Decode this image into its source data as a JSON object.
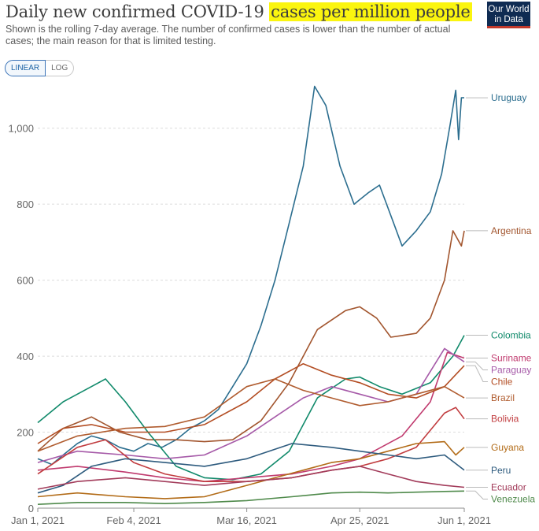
{
  "header": {
    "title_plain": "Daily new confirmed COVID-19 ",
    "title_highlight": "cases per million people",
    "subtitle": "Shown is the rolling 7-day average. The number of confirmed cases is lower than the number of actual cases; the main reason for that is limited testing.",
    "logo_line1": "Our World",
    "logo_line2": "in Data"
  },
  "scale_toggle": {
    "linear": "LINEAR",
    "log": "LOG",
    "selected": "LINEAR"
  },
  "chart_data": {
    "type": "line",
    "x_tick_labels": [
      "Jan 1, 2021",
      "Feb 4, 2021",
      "Mar 16, 2021",
      "Apr 25, 2021",
      "Jun 1, 2021"
    ],
    "x_tick_dates": [
      "2021-01-01",
      "2021-02-04",
      "2021-03-16",
      "2021-04-25",
      "2021-06-01"
    ],
    "y_ticks": [
      0,
      200,
      400,
      600,
      800,
      1000
    ],
    "y_tick_labels": [
      "0",
      "200",
      "400",
      "600",
      "800",
      "1,000"
    ],
    "ylim": [
      0,
      1130
    ],
    "xlim": [
      "2021-01-01",
      "2021-06-01"
    ],
    "grid": "horizontal dashed",
    "series": [
      {
        "name": "Uruguay",
        "color": "#2c6e8f",
        "label_value": 1080,
        "points": [
          [
            "2021-01-01",
            130
          ],
          [
            "2021-01-06",
            115
          ],
          [
            "2021-01-10",
            140
          ],
          [
            "2021-01-15",
            170
          ],
          [
            "2021-01-20",
            190
          ],
          [
            "2021-01-25",
            180
          ],
          [
            "2021-01-30",
            160
          ],
          [
            "2021-02-04",
            150
          ],
          [
            "2021-02-09",
            170
          ],
          [
            "2021-02-14",
            160
          ],
          [
            "2021-02-19",
            180
          ],
          [
            "2021-02-24",
            210
          ],
          [
            "2021-03-01",
            230
          ],
          [
            "2021-03-06",
            260
          ],
          [
            "2021-03-11",
            320
          ],
          [
            "2021-03-16",
            380
          ],
          [
            "2021-03-21",
            480
          ],
          [
            "2021-03-26",
            600
          ],
          [
            "2021-03-31",
            750
          ],
          [
            "2021-04-05",
            900
          ],
          [
            "2021-04-09",
            1110
          ],
          [
            "2021-04-13",
            1060
          ],
          [
            "2021-04-18",
            900
          ],
          [
            "2021-04-23",
            800
          ],
          [
            "2021-04-28",
            830
          ],
          [
            "2021-05-02",
            850
          ],
          [
            "2021-05-07",
            750
          ],
          [
            "2021-05-10",
            690
          ],
          [
            "2021-05-15",
            730
          ],
          [
            "2021-05-20",
            780
          ],
          [
            "2021-05-24",
            880
          ],
          [
            "2021-05-27",
            1010
          ],
          [
            "2021-05-29",
            1100
          ],
          [
            "2021-05-30",
            970
          ],
          [
            "2021-05-31",
            1080
          ],
          [
            "2021-06-01",
            1080
          ]
        ]
      },
      {
        "name": "Argentina",
        "color": "#a2552e",
        "label_value": 730,
        "points": [
          [
            "2021-01-01",
            150
          ],
          [
            "2021-01-10",
            210
          ],
          [
            "2021-01-20",
            240
          ],
          [
            "2021-01-30",
            200
          ],
          [
            "2021-02-09",
            180
          ],
          [
            "2021-02-19",
            180
          ],
          [
            "2021-03-01",
            175
          ],
          [
            "2021-03-11",
            180
          ],
          [
            "2021-03-21",
            230
          ],
          [
            "2021-03-31",
            330
          ],
          [
            "2021-04-10",
            470
          ],
          [
            "2021-04-20",
            520
          ],
          [
            "2021-04-25",
            530
          ],
          [
            "2021-05-01",
            500
          ],
          [
            "2021-05-06",
            450
          ],
          [
            "2021-05-15",
            460
          ],
          [
            "2021-05-20",
            500
          ],
          [
            "2021-05-25",
            600
          ],
          [
            "2021-05-28",
            730
          ],
          [
            "2021-05-31",
            690
          ],
          [
            "2021-06-01",
            730
          ]
        ]
      },
      {
        "name": "Colombia",
        "color": "#118a6b",
        "label_value": 455,
        "points": [
          [
            "2021-01-01",
            225
          ],
          [
            "2021-01-10",
            280
          ],
          [
            "2021-01-20",
            320
          ],
          [
            "2021-01-25",
            340
          ],
          [
            "2021-02-01",
            280
          ],
          [
            "2021-02-09",
            200
          ],
          [
            "2021-02-19",
            110
          ],
          [
            "2021-03-01",
            80
          ],
          [
            "2021-03-11",
            75
          ],
          [
            "2021-03-21",
            90
          ],
          [
            "2021-03-31",
            150
          ],
          [
            "2021-04-05",
            220
          ],
          [
            "2021-04-10",
            290
          ],
          [
            "2021-04-20",
            340
          ],
          [
            "2021-04-25",
            345
          ],
          [
            "2021-05-02",
            320
          ],
          [
            "2021-05-10",
            300
          ],
          [
            "2021-05-20",
            330
          ],
          [
            "2021-05-28",
            400
          ],
          [
            "2021-06-01",
            455
          ]
        ]
      },
      {
        "name": "Suriname",
        "color": "#c03a6e",
        "label_value": 395,
        "points": [
          [
            "2021-01-01",
            100
          ],
          [
            "2021-01-15",
            110
          ],
          [
            "2021-02-01",
            95
          ],
          [
            "2021-02-15",
            80
          ],
          [
            "2021-03-01",
            70
          ],
          [
            "2021-03-16",
            80
          ],
          [
            "2021-04-01",
            90
          ],
          [
            "2021-04-15",
            110
          ],
          [
            "2021-04-25",
            130
          ],
          [
            "2021-05-10",
            190
          ],
          [
            "2021-05-20",
            280
          ],
          [
            "2021-05-26",
            410
          ],
          [
            "2021-06-01",
            395
          ]
        ]
      },
      {
        "name": "Paraguay",
        "color": "#a65aa8",
        "label_value": 385,
        "points": [
          [
            "2021-01-01",
            120
          ],
          [
            "2021-01-15",
            150
          ],
          [
            "2021-02-01",
            140
          ],
          [
            "2021-02-15",
            130
          ],
          [
            "2021-03-01",
            140
          ],
          [
            "2021-03-16",
            190
          ],
          [
            "2021-03-26",
            240
          ],
          [
            "2021-04-05",
            290
          ],
          [
            "2021-04-15",
            320
          ],
          [
            "2021-04-25",
            300
          ],
          [
            "2021-05-05",
            280
          ],
          [
            "2021-05-15",
            300
          ],
          [
            "2021-05-25",
            420
          ],
          [
            "2021-06-01",
            385
          ]
        ]
      },
      {
        "name": "Chile",
        "color": "#b34d23",
        "label_value": 375,
        "points": [
          [
            "2021-01-01",
            170
          ],
          [
            "2021-01-10",
            210
          ],
          [
            "2021-01-20",
            220
          ],
          [
            "2021-02-01",
            200
          ],
          [
            "2021-02-15",
            200
          ],
          [
            "2021-03-01",
            220
          ],
          [
            "2021-03-16",
            280
          ],
          [
            "2021-03-26",
            340
          ],
          [
            "2021-04-05",
            380
          ],
          [
            "2021-04-15",
            350
          ],
          [
            "2021-04-25",
            330
          ],
          [
            "2021-05-05",
            300
          ],
          [
            "2021-05-15",
            290
          ],
          [
            "2021-05-25",
            320
          ],
          [
            "2021-06-01",
            375
          ]
        ]
      },
      {
        "name": "Brazil",
        "color": "#b05c2f",
        "label_value": 290,
        "points": [
          [
            "2021-01-01",
            150
          ],
          [
            "2021-01-15",
            190
          ],
          [
            "2021-02-01",
            210
          ],
          [
            "2021-02-15",
            215
          ],
          [
            "2021-03-01",
            240
          ],
          [
            "2021-03-16",
            320
          ],
          [
            "2021-03-26",
            340
          ],
          [
            "2021-04-05",
            310
          ],
          [
            "2021-04-15",
            290
          ],
          [
            "2021-04-25",
            270
          ],
          [
            "2021-05-05",
            280
          ],
          [
            "2021-05-15",
            300
          ],
          [
            "2021-05-25",
            320
          ],
          [
            "2021-06-01",
            290
          ]
        ]
      },
      {
        "name": "Bolivia",
        "color": "#c13c3f",
        "label_value": 235,
        "points": [
          [
            "2021-01-01",
            90
          ],
          [
            "2021-01-15",
            160
          ],
          [
            "2021-01-25",
            180
          ],
          [
            "2021-02-04",
            120
          ],
          [
            "2021-02-15",
            90
          ],
          [
            "2021-03-01",
            70
          ],
          [
            "2021-03-16",
            70
          ],
          [
            "2021-04-01",
            80
          ],
          [
            "2021-04-15",
            100
          ],
          [
            "2021-04-25",
            110
          ],
          [
            "2021-05-05",
            130
          ],
          [
            "2021-05-15",
            160
          ],
          [
            "2021-05-25",
            250
          ],
          [
            "2021-05-29",
            265
          ],
          [
            "2021-06-01",
            235
          ]
        ]
      },
      {
        "name": "Guyana",
        "color": "#b26b17",
        "label_value": 160,
        "points": [
          [
            "2021-01-01",
            30
          ],
          [
            "2021-01-15",
            40
          ],
          [
            "2021-02-01",
            30
          ],
          [
            "2021-02-15",
            25
          ],
          [
            "2021-03-01",
            30
          ],
          [
            "2021-03-16",
            60
          ],
          [
            "2021-03-26",
            80
          ],
          [
            "2021-04-05",
            100
          ],
          [
            "2021-04-15",
            120
          ],
          [
            "2021-04-25",
            130
          ],
          [
            "2021-05-05",
            150
          ],
          [
            "2021-05-15",
            170
          ],
          [
            "2021-05-25",
            175
          ],
          [
            "2021-05-29",
            140
          ],
          [
            "2021-06-01",
            160
          ]
        ]
      },
      {
        "name": "Peru",
        "color": "#2e5b7e",
        "label_value": 100,
        "points": [
          [
            "2021-01-01",
            40
          ],
          [
            "2021-01-10",
            60
          ],
          [
            "2021-01-20",
            110
          ],
          [
            "2021-02-01",
            130
          ],
          [
            "2021-02-15",
            120
          ],
          [
            "2021-03-01",
            110
          ],
          [
            "2021-03-16",
            130
          ],
          [
            "2021-04-01",
            170
          ],
          [
            "2021-04-15",
            160
          ],
          [
            "2021-04-25",
            150
          ],
          [
            "2021-05-05",
            140
          ],
          [
            "2021-05-15",
            130
          ],
          [
            "2021-05-25",
            140
          ],
          [
            "2021-06-01",
            100
          ]
        ]
      },
      {
        "name": "Ecuador",
        "color": "#a23b5a",
        "label_value": 55,
        "points": [
          [
            "2021-01-01",
            50
          ],
          [
            "2021-01-15",
            70
          ],
          [
            "2021-02-01",
            80
          ],
          [
            "2021-02-15",
            70
          ],
          [
            "2021-03-01",
            60
          ],
          [
            "2021-03-16",
            70
          ],
          [
            "2021-04-01",
            80
          ],
          [
            "2021-04-15",
            100
          ],
          [
            "2021-04-25",
            110
          ],
          [
            "2021-05-05",
            90
          ],
          [
            "2021-05-15",
            70
          ],
          [
            "2021-05-25",
            60
          ],
          [
            "2021-06-01",
            55
          ]
        ]
      },
      {
        "name": "Venezuela",
        "color": "#4f8a4b",
        "label_value": 45,
        "points": [
          [
            "2021-01-01",
            10
          ],
          [
            "2021-01-15",
            15
          ],
          [
            "2021-02-01",
            15
          ],
          [
            "2021-02-15",
            12
          ],
          [
            "2021-03-01",
            15
          ],
          [
            "2021-03-16",
            20
          ],
          [
            "2021-04-01",
            30
          ],
          [
            "2021-04-15",
            40
          ],
          [
            "2021-04-25",
            42
          ],
          [
            "2021-05-05",
            40
          ],
          [
            "2021-05-15",
            42
          ],
          [
            "2021-05-25",
            44
          ],
          [
            "2021-06-01",
            45
          ]
        ]
      }
    ]
  }
}
